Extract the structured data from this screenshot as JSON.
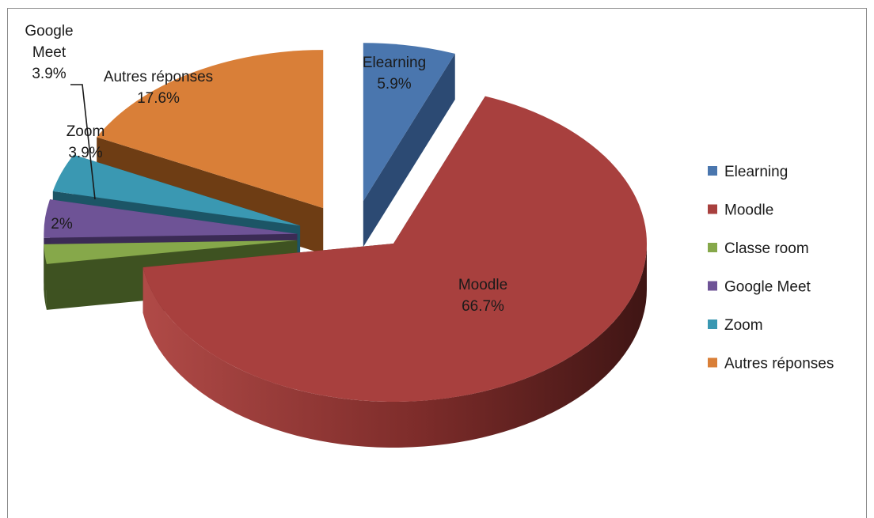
{
  "chart_data": {
    "type": "pie",
    "variant": "3d-exploded",
    "title": "",
    "legend_position": "right",
    "categories": [
      "Elearning",
      "Moodle",
      "Classe room",
      "Google Meet",
      "Zoom",
      "Autres réponses"
    ],
    "values": [
      5.9,
      66.7,
      2,
      3.9,
      3.9,
      17.6
    ],
    "value_labels": [
      "5.9%",
      "66.7%",
      "2%",
      "3.9%",
      "3.9%",
      "17.6%"
    ],
    "data_labels": [
      {
        "name": "Elearning",
        "value": "5.9%"
      },
      {
        "name": "Moodle",
        "value": "66.7%"
      },
      {
        "name": "",
        "value": "2%"
      },
      {
        "name": "Google Meet",
        "name_lines": [
          "Google",
          "Meet"
        ],
        "value": "3.9%"
      },
      {
        "name": "Zoom",
        "value": "3.9%"
      },
      {
        "name": "Autres réponses",
        "value": "17.6%"
      }
    ],
    "colors": [
      "#4a76ae",
      "#a8403e",
      "#86a84a",
      "#6e5396",
      "#3a98b2",
      "#d97f38"
    ],
    "side_colors": [
      "#2c4a73",
      "#5a2221",
      "#3e5221",
      "#3b2b55",
      "#1c5566",
      "#6e3d14"
    ]
  }
}
